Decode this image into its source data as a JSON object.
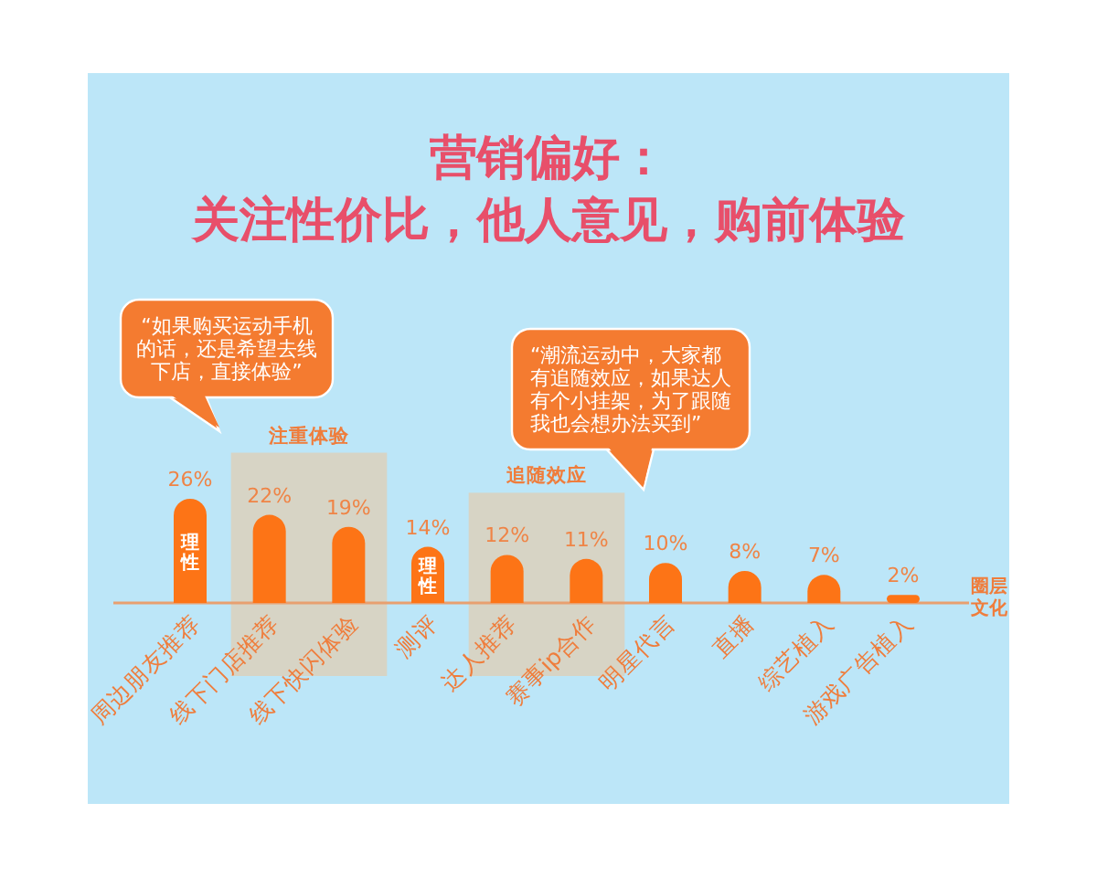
{
  "chart_data": {
    "type": "bar",
    "title": "营销偏好：",
    "subtitle": "关注性价比，他人意见，购前体验",
    "categories": [
      "周边朋友推荐",
      "线下门店推荐",
      "线下快闪体验",
      "测评",
      "达人推荐",
      "赛事ip合作",
      "明星代言",
      "直播",
      "综艺植入",
      "游戏广告植入"
    ],
    "values": [
      26,
      22,
      19,
      14,
      12,
      11,
      10,
      8,
      7,
      2
    ],
    "value_labels": [
      "26%",
      "22%",
      "19%",
      "14%",
      "12%",
      "11%",
      "10%",
      "8%",
      "7%",
      "2%"
    ],
    "color": "#fd7416",
    "bands": [
      {
        "axis": "x",
        "from": "线下门店推荐",
        "to": "线下快闪体验",
        "label": "注重体验",
        "color": "#d7d4c5"
      },
      {
        "axis": "x",
        "from": "达人推荐",
        "to": "赛事ip合作",
        "label": "追随效应",
        "color": "#d7d4c5"
      }
    ],
    "annotations": [
      "“如果购买运动手机的话，还是希望去线下店，直接体验”",
      "“潮流运动中，大家都有追随效应，如果达人有个小挂架，为了跟随我也会想办法买到”",
      "理性",
      "理性",
      "圈层文化"
    ]
  }
}
